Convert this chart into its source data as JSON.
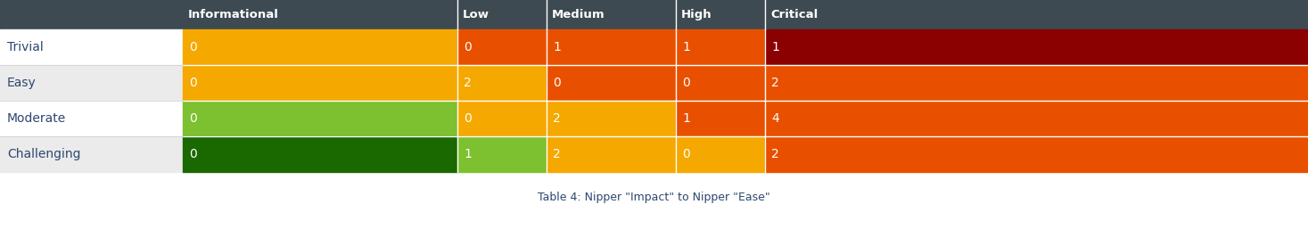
{
  "title": "Table 4: Nipper \"Impact\" to Nipper \"Ease\"",
  "title_color_blue": "#1a3a6b",
  "title_color_orange": "#e85000",
  "header_bg": "#3d4a52",
  "header_text_color": "#ffffff",
  "header_labels": [
    "Informational",
    "Low",
    "Medium",
    "High",
    "Critical"
  ],
  "row_labels": [
    "Trivial",
    "Easy",
    "Moderate",
    "Challenging"
  ],
  "row_label_text_color": "#2c4770",
  "values": [
    [
      0,
      0,
      1,
      1,
      1
    ],
    [
      0,
      2,
      0,
      0,
      2
    ],
    [
      0,
      0,
      2,
      1,
      4
    ],
    [
      0,
      1,
      2,
      0,
      2
    ]
  ],
  "cell_colors": [
    [
      "#f5a800",
      "#e85000",
      "#e85000",
      "#e85000",
      "#8b0000"
    ],
    [
      "#f5a800",
      "#f5a800",
      "#e85000",
      "#e85000",
      "#e85000"
    ],
    [
      "#7dc030",
      "#f5a800",
      "#f5a800",
      "#e85000",
      "#e85000"
    ],
    [
      "#1a6800",
      "#7dc030",
      "#f5a800",
      "#f5a800",
      "#e85000"
    ]
  ],
  "cell_text_color": "#ffffff",
  "row_label_bg_odd": "#ffffff",
  "row_label_bg_even": "#ebebeb",
  "bg_color": "#ffffff",
  "figsize": [
    14.67,
    2.57
  ],
  "n_rows": 4,
  "n_cols": 5
}
